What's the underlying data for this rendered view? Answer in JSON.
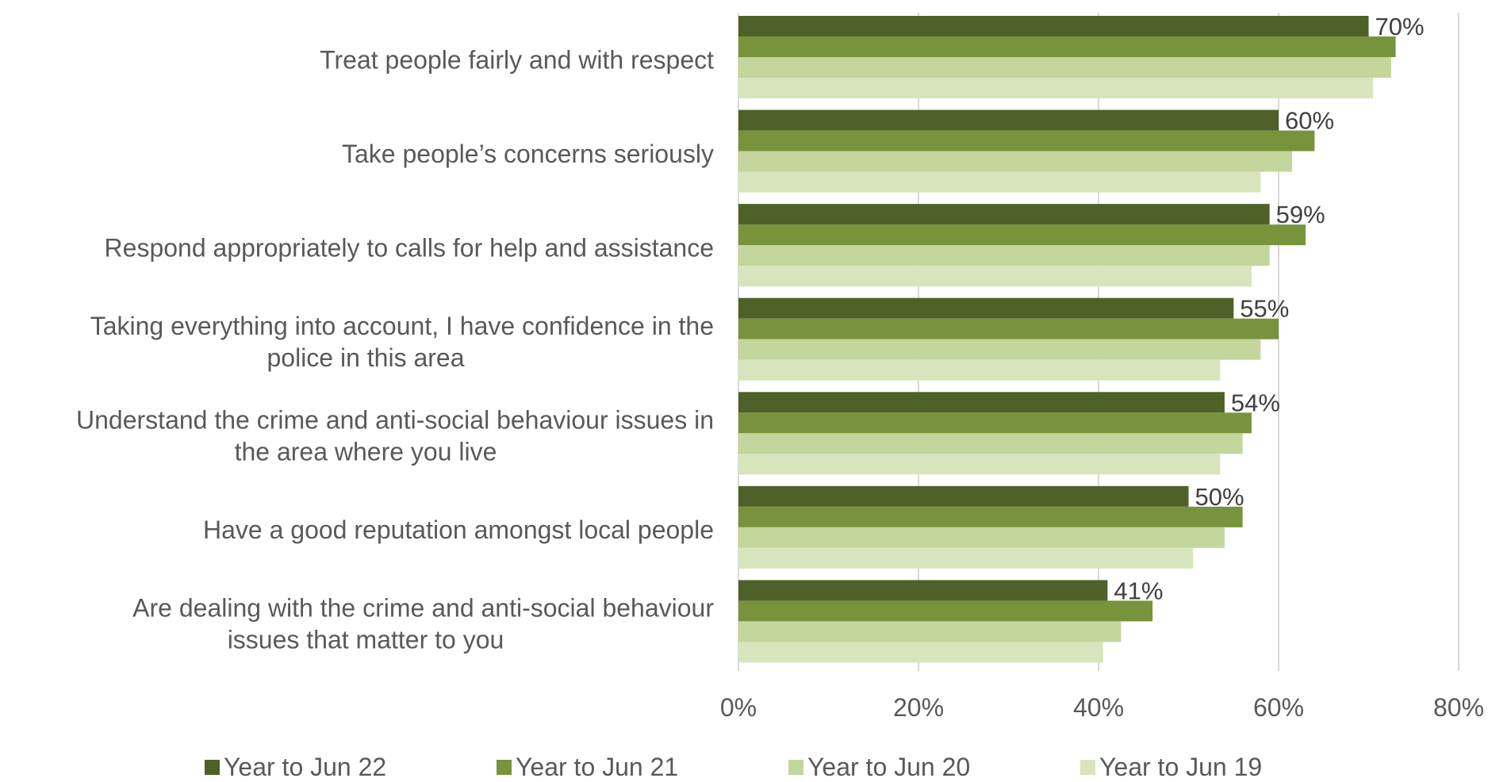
{
  "chart_data": {
    "type": "bar",
    "orientation": "horizontal",
    "title": "",
    "xlabel": "",
    "ylabel": "",
    "xlim": [
      0,
      80
    ],
    "x_ticks": [
      "0%",
      "20%",
      "40%",
      "60%",
      "80%"
    ],
    "grid": "vertical",
    "legend_position": "bottom",
    "categories": [
      [
        "Treat people fairly and with respect"
      ],
      [
        "Take people’s concerns seriously"
      ],
      [
        "Respond appropriately to calls for help and assistance"
      ],
      [
        "Taking everything into account, I have confidence in the",
        "police in this area"
      ],
      [
        "Understand the crime and anti-social behaviour issues in",
        "the area where you live"
      ],
      [
        "Have a good reputation amongst local people"
      ],
      [
        "Are dealing with the crime and anti-social behaviour",
        "issues that matter to you"
      ]
    ],
    "series": [
      {
        "name": "Year to Jun 22",
        "color": "#4e6128",
        "values": [
          70,
          60,
          59,
          55,
          54,
          50,
          41
        ]
      },
      {
        "name": "Year to Jun 21",
        "color": "#77933c",
        "values": [
          73,
          64,
          63,
          60,
          57,
          56,
          46
        ]
      },
      {
        "name": "Year to Jun 20",
        "color": "#c3d69b",
        "values": [
          72.5,
          61.5,
          59,
          58,
          56,
          54,
          42.5
        ]
      },
      {
        "name": "Year to Jun 19",
        "color": "#d8e4bc",
        "values": [
          70.5,
          58,
          57,
          53.5,
          53.5,
          50.5,
          40.5
        ]
      }
    ],
    "data_labels": [
      "70%",
      "60%",
      "59%",
      "55%",
      "54%",
      "50%",
      "41%"
    ],
    "gridline_color": "#d9d9d9"
  }
}
